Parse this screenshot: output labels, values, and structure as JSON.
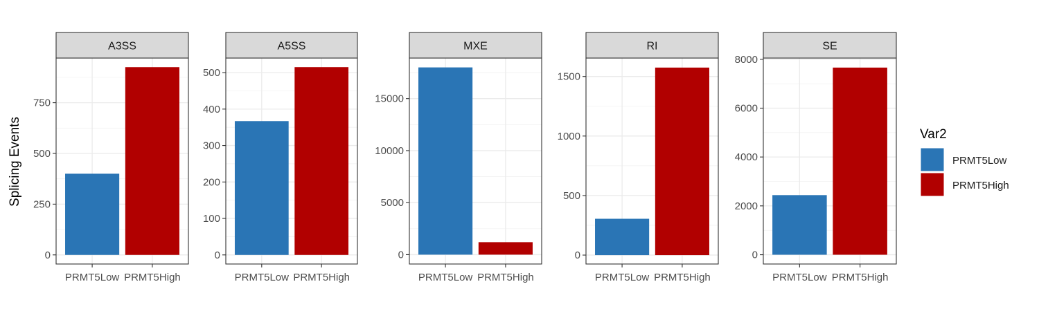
{
  "chart_data": {
    "type": "bar",
    "ylabel": "Splicing Events",
    "xlabel": "",
    "legend": {
      "title": "Var2",
      "placement": "right",
      "entries": [
        {
          "name": "PRMT5Low",
          "color": "#2A75B5"
        },
        {
          "name": "PRMT5High",
          "color": "#B10000"
        }
      ]
    },
    "categories": [
      "PRMT5Low",
      "PRMT5High"
    ],
    "colors": {
      "PRMT5Low": "#2A75B5",
      "PRMT5High": "#B10000"
    },
    "grid": true,
    "panels": [
      {
        "title": "A3SS",
        "values": [
          400,
          925
        ],
        "ylim": [
          -45,
          970
        ],
        "yticks": [
          0,
          250,
          500,
          750
        ]
      },
      {
        "title": "A5SS",
        "values": [
          367,
          515
        ],
        "ylim": [
          -25,
          540
        ],
        "yticks": [
          0,
          100,
          200,
          300,
          400,
          500
        ]
      },
      {
        "title": "MXE",
        "values": [
          18000,
          1200
        ],
        "ylim": [
          -900,
          18900
        ],
        "yticks": [
          0,
          5000,
          10000,
          15000
        ]
      },
      {
        "title": "RI",
        "values": [
          305,
          1575
        ],
        "ylim": [
          -75,
          1655
        ],
        "yticks": [
          0,
          500,
          1000,
          1500
        ]
      },
      {
        "title": "SE",
        "values": [
          2440,
          7660
        ],
        "ylim": [
          -380,
          8050
        ],
        "yticks": [
          0,
          2000,
          4000,
          6000,
          8000
        ]
      }
    ]
  }
}
